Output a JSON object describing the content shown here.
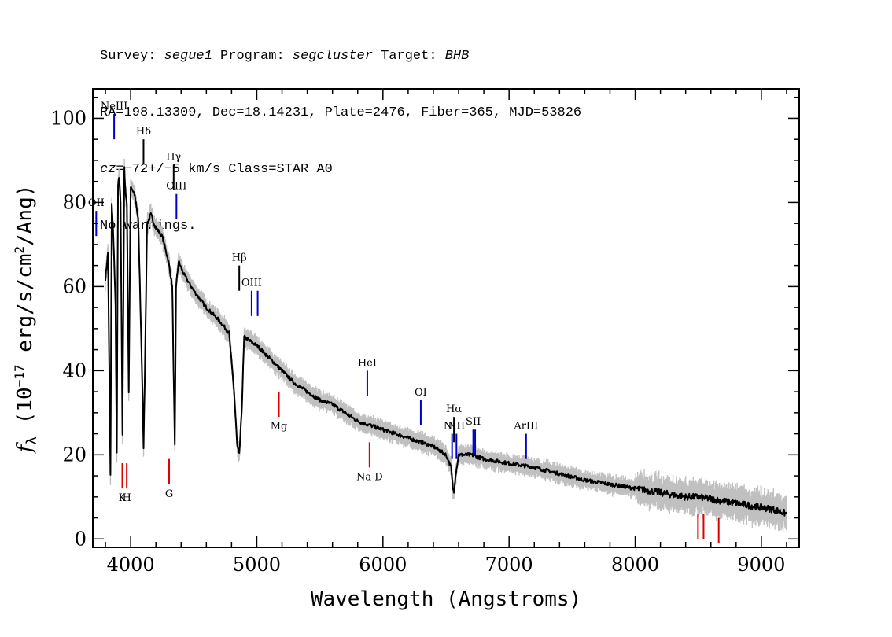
{
  "header": {
    "line1": {
      "survey_label": "Survey: ",
      "survey": "segue1",
      "program_label": " Program: ",
      "program": "segcluster",
      "target_label": " Target: ",
      "target": "BHB"
    },
    "line2": "RA=198.13309, Dec=18.14231, Plate=2476, Fiber=365, MJD=53826",
    "line3": {
      "cz_label": "cz",
      "cz_value": "=−72+/−5",
      "cz_rest": " km/s Class=STAR A0"
    },
    "line4": "No warnings."
  },
  "chart_data": {
    "type": "line",
    "xlabel": "Wavelength (Angstroms)",
    "ylabel_parts": {
      "f": "f",
      "sub": "λ",
      "a": " (10",
      "exp": "−17",
      "b": " erg/s/cm",
      "exp2": "2",
      "c": "/Ang)"
    },
    "xlim": [
      3700,
      9300
    ],
    "ylim": [
      -2,
      107
    ],
    "x_ticks": [
      4000,
      5000,
      6000,
      7000,
      8000,
      9000
    ],
    "y_ticks": [
      0,
      20,
      40,
      60,
      80,
      100
    ],
    "grid": false,
    "series": [
      {
        "color": "#000000",
        "x": [
          3800,
          3820,
          3840,
          3850,
          3865,
          3880,
          3890,
          3900,
          3910,
          3920,
          3935,
          3950,
          3960,
          3970,
          3985,
          4000,
          4030,
          4060,
          4080,
          4090,
          4102,
          4115,
          4130,
          4160,
          4200,
          4250,
          4300,
          4330,
          4340,
          4350,
          4360,
          4380,
          4420,
          4500,
          4600,
          4700,
          4780,
          4820,
          4845,
          4861,
          4880,
          4900,
          4950,
          5000,
          5100,
          5200,
          5300,
          5400,
          5500,
          5600,
          5700,
          5800,
          5900,
          6000,
          6100,
          6200,
          6300,
          6400,
          6500,
          6540,
          6555,
          6563,
          6575,
          6600,
          6700,
          6800,
          7000,
          7200,
          7400,
          7600,
          7800,
          8000,
          8200,
          8400,
          8500,
          8600,
          8700,
          8800,
          8900,
          9000,
          9100,
          9200
        ],
        "y": [
          62,
          68,
          15,
          80,
          70,
          55,
          20,
          84,
          86,
          80,
          25,
          88,
          82,
          80,
          35,
          84,
          82,
          76,
          52,
          40,
          22,
          44,
          75,
          77,
          74,
          72,
          66,
          60,
          40,
          22,
          60,
          66,
          63,
          59,
          55,
          52,
          49,
          35,
          22,
          20,
          30,
          48,
          47,
          46,
          43,
          40,
          37,
          35,
          33,
          32,
          30,
          28,
          27,
          26,
          25,
          24,
          23,
          22,
          20,
          17,
          12,
          11,
          15,
          20,
          20,
          19,
          18,
          17,
          15.5,
          14,
          13,
          12,
          11,
          10,
          10,
          9.5,
          9,
          8.5,
          8,
          7.5,
          7,
          6
        ]
      }
    ],
    "error_band_color": "#c0c0c0",
    "line_labels_blue": [
      {
        "label": "OII",
        "x": 3727,
        "y0": 72,
        "y1": 78
      },
      {
        "label": "NeIII",
        "x": 3869,
        "y0": 95,
        "y1": 101
      },
      {
        "label": "OIII",
        "x": 4363,
        "y0": 76,
        "y1": 82
      },
      {
        "label": "OIII",
        "x": 4959,
        "y0": 53,
        "y1": 59
      },
      {
        "label": "",
        "x": 5007,
        "y0": 53,
        "y1": 59
      },
      {
        "label": "HeI",
        "x": 5876,
        "y0": 34,
        "y1": 40
      },
      {
        "label": "OI",
        "x": 6300,
        "y0": 27,
        "y1": 33
      },
      {
        "label": "NII",
        "x": 6548,
        "y0": 19,
        "y1": 25
      },
      {
        "label": "NII",
        "x": 6583,
        "y0": 19,
        "y1": 25
      },
      {
        "label": "SII",
        "x": 6716,
        "y0": 20,
        "y1": 26
      },
      {
        "label": "",
        "x": 6731,
        "y0": 20,
        "y1": 26
      },
      {
        "label": "ArIII",
        "x": 7135,
        "y0": 19,
        "y1": 25
      }
    ],
    "line_labels_black": [
      {
        "label": "Hδ",
        "x": 4102,
        "y0": 89,
        "y1": 95
      },
      {
        "label": "Hγ",
        "x": 4341,
        "y0": 83,
        "y1": 89
      },
      {
        "label": "Hβ",
        "x": 4861,
        "y0": 59,
        "y1": 65
      },
      {
        "label": "Hα",
        "x": 6563,
        "y0": 23,
        "y1": 29
      }
    ],
    "line_labels_red": [
      {
        "label": "K",
        "x": 3934,
        "y0": 12,
        "y1": 18
      },
      {
        "label": "H",
        "x": 3969,
        "y0": 12,
        "y1": 18
      },
      {
        "label": "G",
        "x": 4305,
        "y0": 13,
        "y1": 19
      },
      {
        "label": "Mg",
        "x": 5175,
        "y0": 29,
        "y1": 35
      },
      {
        "label": "Na D",
        "x": 5894,
        "y0": 17,
        "y1": 23
      },
      {
        "label": "",
        "x": 8498,
        "y0": 0,
        "y1": 6
      },
      {
        "label": "",
        "x": 8542,
        "y0": 0,
        "y1": 6
      },
      {
        "label": "",
        "x": 8662,
        "y0": -1,
        "y1": 5
      }
    ]
  }
}
